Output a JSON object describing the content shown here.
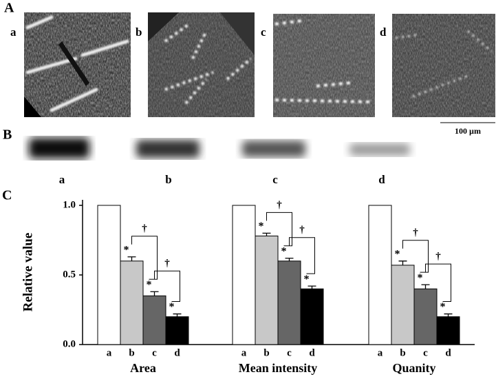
{
  "panel_labels": [
    "A",
    "B",
    "C"
  ],
  "panel_a": {
    "image_labels": [
      "a",
      "b",
      "c",
      "d"
    ],
    "scale_bar": "100 µm"
  },
  "panel_b": {
    "lane_labels": [
      "a",
      "b",
      "c",
      "d"
    ]
  },
  "chart_data": {
    "type": "bar",
    "ylabel": "Relative value",
    "categories": [
      "Area",
      "Mean intensity",
      "Quanity"
    ],
    "series": [
      {
        "name": "a",
        "color": "#ffffff",
        "values": [
          1.0,
          1.0,
          1.0
        ]
      },
      {
        "name": "b",
        "color": "#c8c8c8",
        "values": [
          0.6,
          0.78,
          0.57
        ],
        "errors": [
          0.03,
          0.02,
          0.03
        ]
      },
      {
        "name": "c",
        "color": "#666666",
        "values": [
          0.35,
          0.6,
          0.4
        ],
        "errors": [
          0.03,
          0.02,
          0.03
        ]
      },
      {
        "name": "d",
        "color": "#000000",
        "values": [
          0.2,
          0.4,
          0.2
        ],
        "errors": [
          0.02,
          0.02,
          0.02
        ]
      }
    ],
    "ylim": [
      0,
      1
    ],
    "yticks": [
      {
        "value": 0,
        "label": "0.0"
      },
      {
        "value": 0.5,
        "label": "0.5"
      },
      {
        "value": 1,
        "label": "1.0"
      }
    ],
    "significance_mark": "*",
    "comparison_mark": "†"
  }
}
